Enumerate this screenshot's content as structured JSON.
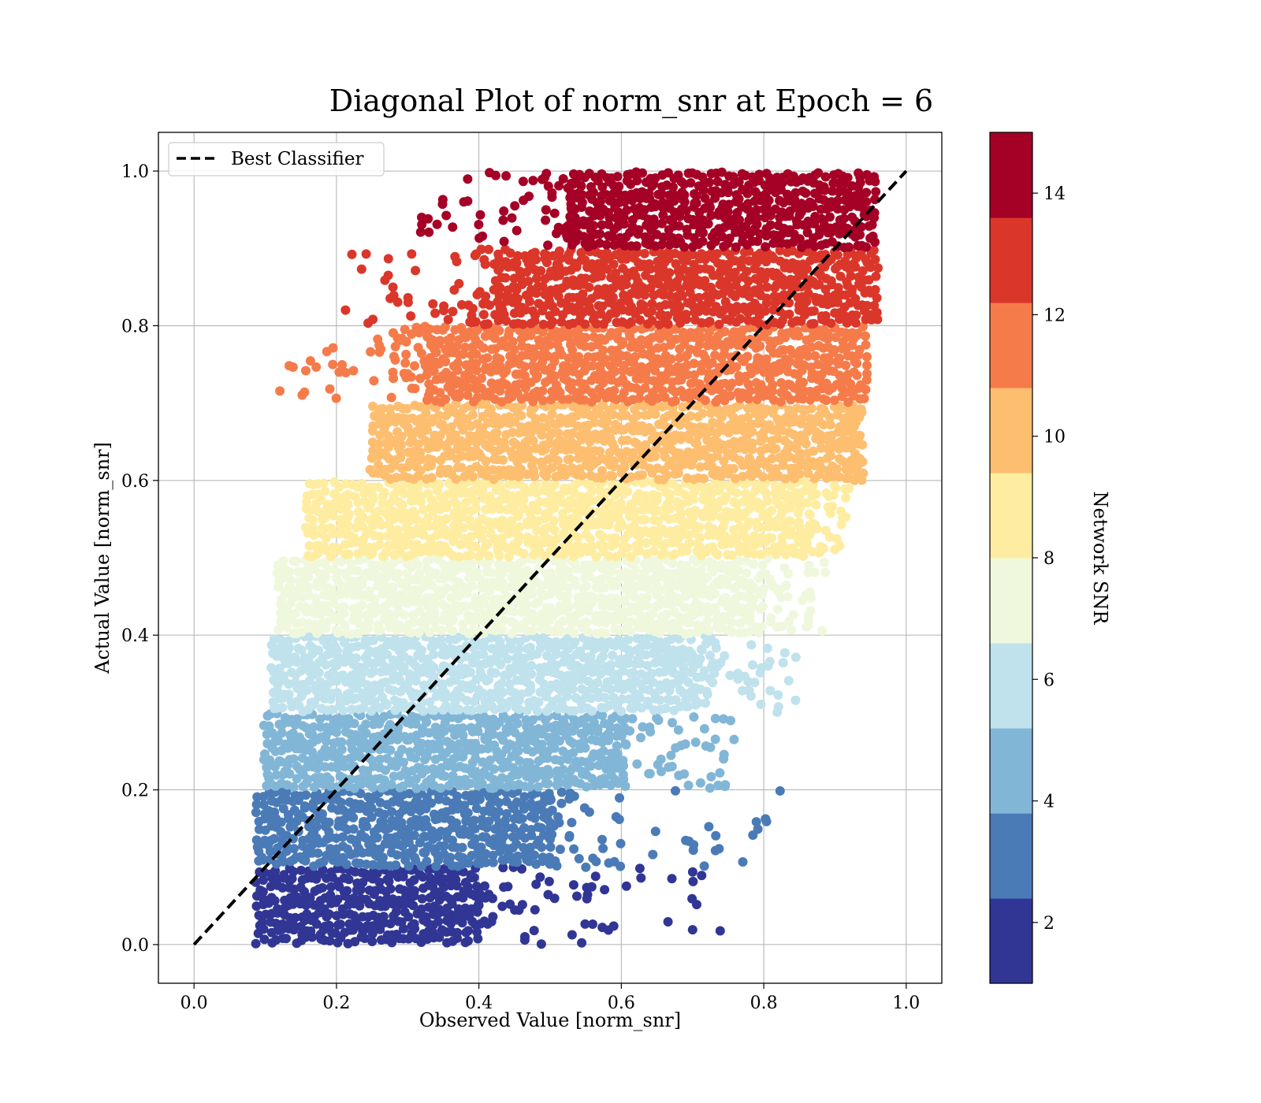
{
  "chart_data": {
    "type": "scatter",
    "title": "Diagonal Plot of norm_snr at Epoch = 6",
    "xlabel": "Observed Value [norm_snr]",
    "ylabel": "Actual Value [norm_snr]",
    "xlim": [
      -0.05,
      1.05
    ],
    "ylim": [
      -0.05,
      1.05
    ],
    "xticks": [
      "0.0",
      "0.2",
      "0.4",
      "0.6",
      "0.8",
      "1.0"
    ],
    "yticks": [
      "0.0",
      "0.2",
      "0.4",
      "0.6",
      "0.8",
      "1.0"
    ],
    "grid": true,
    "legend": {
      "placement": "top-left",
      "entries": [
        "Best Classifier"
      ]
    },
    "reference_line": {
      "name": "Best Classifier",
      "style": "dashed",
      "color": "#000000",
      "x": [
        0.0,
        1.0
      ],
      "y": [
        0.0,
        1.0
      ]
    },
    "colorbar": {
      "label": "Network SNR",
      "range": [
        1,
        15
      ],
      "ticks": [
        "2",
        "4",
        "6",
        "8",
        "10",
        "12",
        "14"
      ],
      "colors": [
        "#313695",
        "#4a7bb7",
        "#82b6d7",
        "#bfe2ed",
        "#eff8dd",
        "#feeda1",
        "#fdbe70",
        "#f57c4a",
        "#da372a",
        "#a50026"
      ]
    },
    "bands": [
      {
        "y_range": [
          0.0,
          0.1
        ],
        "snr": 1.7,
        "color": "#313695",
        "x_core": [
          0.09,
          0.4
        ],
        "x_tail": 0.77
      },
      {
        "y_range": [
          0.1,
          0.2
        ],
        "snr": 3.1,
        "color": "#4a7bb7",
        "x_core": [
          0.09,
          0.5
        ],
        "x_tail": 0.84
      },
      {
        "y_range": [
          0.2,
          0.3
        ],
        "snr": 4.5,
        "color": "#82b6d7",
        "x_core": [
          0.1,
          0.6
        ],
        "x_tail": 0.78
      },
      {
        "y_range": [
          0.3,
          0.4
        ],
        "snr": 5.9,
        "color": "#bfe2ed",
        "x_core": [
          0.11,
          0.7
        ],
        "x_tail": 0.85
      },
      {
        "y_range": [
          0.4,
          0.5
        ],
        "snr": 7.3,
        "color": "#eff8dd",
        "x_core": [
          0.12,
          0.78
        ],
        "x_tail": 0.89
      },
      {
        "y_range": [
          0.5,
          0.6
        ],
        "snr": 8.7,
        "color": "#feeda1",
        "x_core": [
          0.16,
          0.85
        ],
        "x_tail": 0.92
      },
      {
        "y_range": [
          0.6,
          0.7
        ],
        "snr": 10.1,
        "color": "#fdbe70",
        "x_core": [
          0.25,
          0.92
        ],
        "x_tail": 0.94
      },
      {
        "y_range": [
          0.7,
          0.8
        ],
        "snr": 11.5,
        "color": "#f57c4a",
        "x_core": [
          0.33,
          0.95
        ],
        "x_tail": 0.95
      },
      {
        "y_range": [
          0.8,
          0.9
        ],
        "snr": 12.9,
        "color": "#da372a",
        "x_core": [
          0.43,
          0.96
        ],
        "x_tail": 0.96
      },
      {
        "y_range": [
          0.9,
          1.0
        ],
        "snr": 14.3,
        "color": "#a50026",
        "x_core": [
          0.53,
          0.96
        ],
        "x_tail": 0.96
      }
    ]
  }
}
